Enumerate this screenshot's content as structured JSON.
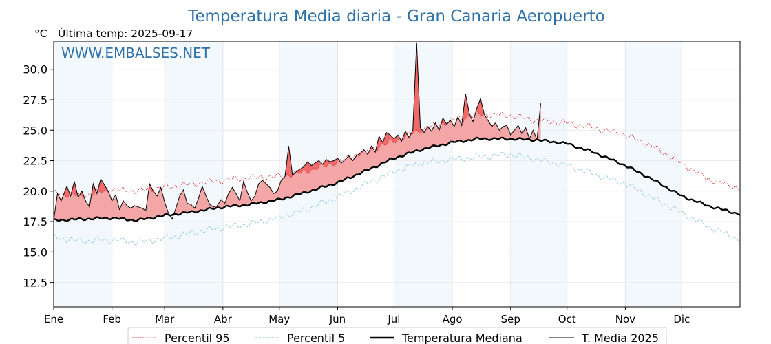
{
  "chart_data": {
    "type": "line",
    "title": "Temperatura Media diaria - Gran Canaria Aeropuerto",
    "unit_label": "°C",
    "last_temp_label": "Última temp: 2025-09-17",
    "watermark": "WWW.EMBALSES.NET",
    "ylim": [
      10.5,
      32.3
    ],
    "yticks": [
      12.5,
      15.0,
      17.5,
      20.0,
      22.5,
      25.0,
      27.5,
      30.0
    ],
    "xlim_days": [
      1,
      366
    ],
    "months": [
      "Ene",
      "Feb",
      "Mar",
      "Abr",
      "May",
      "Jun",
      "Jul",
      "Ago",
      "Sep",
      "Oct",
      "Nov",
      "Dic"
    ],
    "grid": true,
    "legend_position": "bottom",
    "fill_colors": {
      "above_median": "#f4a6a6",
      "above_p95": "#f06a6a"
    },
    "series": [
      {
        "name": "Percentil 95",
        "style": "dotted",
        "color": "#e03030",
        "anchors": [
          [
            1,
            19.9
          ],
          [
            15,
            19.6
          ],
          [
            32,
            20.1
          ],
          [
            45,
            20.0
          ],
          [
            60,
            20.3
          ],
          [
            75,
            20.6
          ],
          [
            91,
            20.9
          ],
          [
            105,
            21.1
          ],
          [
            121,
            21.2
          ],
          [
            135,
            21.6
          ],
          [
            152,
            22.4
          ],
          [
            166,
            23.2
          ],
          [
            182,
            24.1
          ],
          [
            196,
            25.0
          ],
          [
            213,
            25.8
          ],
          [
            227,
            26.3
          ],
          [
            244,
            26.2
          ],
          [
            258,
            25.8
          ],
          [
            274,
            25.6
          ],
          [
            288,
            25.2
          ],
          [
            305,
            24.6
          ],
          [
            319,
            23.7
          ],
          [
            335,
            22.3
          ],
          [
            349,
            21.0
          ],
          [
            366,
            20.2
          ]
        ]
      },
      {
        "name": "Percentil 5",
        "style": "dashed",
        "color": "#9fd0e0",
        "anchors": [
          [
            1,
            16.2
          ],
          [
            15,
            15.9
          ],
          [
            32,
            16.0
          ],
          [
            45,
            15.8
          ],
          [
            60,
            16.1
          ],
          [
            75,
            16.6
          ],
          [
            91,
            17.0
          ],
          [
            105,
            17.3
          ],
          [
            121,
            17.8
          ],
          [
            135,
            18.5
          ],
          [
            152,
            19.5
          ],
          [
            166,
            20.5
          ],
          [
            182,
            21.6
          ],
          [
            196,
            22.3
          ],
          [
            213,
            22.6
          ],
          [
            227,
            22.8
          ],
          [
            244,
            23.0
          ],
          [
            258,
            22.6
          ],
          [
            274,
            22.1
          ],
          [
            288,
            21.4
          ],
          [
            305,
            20.6
          ],
          [
            319,
            19.5
          ],
          [
            335,
            18.2
          ],
          [
            349,
            17.1
          ],
          [
            366,
            16.0
          ]
        ]
      },
      {
        "name": "Temperatura Mediana",
        "style": "thick",
        "color": "#000000",
        "anchors": [
          [
            1,
            17.6
          ],
          [
            15,
            17.7
          ],
          [
            32,
            17.8
          ],
          [
            45,
            17.6
          ],
          [
            60,
            18.0
          ],
          [
            75,
            18.3
          ],
          [
            91,
            18.7
          ],
          [
            105,
            18.9
          ],
          [
            121,
            19.3
          ],
          [
            135,
            19.9
          ],
          [
            152,
            20.7
          ],
          [
            166,
            21.6
          ],
          [
            182,
            22.7
          ],
          [
            196,
            23.4
          ],
          [
            213,
            24.0
          ],
          [
            227,
            24.3
          ],
          [
            244,
            24.3
          ],
          [
            258,
            24.2
          ],
          [
            274,
            23.9
          ],
          [
            288,
            23.2
          ],
          [
            305,
            22.1
          ],
          [
            319,
            21.0
          ],
          [
            335,
            19.6
          ],
          [
            349,
            18.8
          ],
          [
            366,
            18.1
          ]
        ]
      },
      {
        "name": "T. Media 2025",
        "style": "thin",
        "color": "#000000",
        "values": [
          [
            1,
            17.6
          ],
          [
            3,
            19.8
          ],
          [
            5,
            19.2
          ],
          [
            8,
            20.4
          ],
          [
            10,
            19.6
          ],
          [
            12,
            20.8
          ],
          [
            14,
            19.5
          ],
          [
            16,
            20.0
          ],
          [
            18,
            19.2
          ],
          [
            20,
            18.7
          ],
          [
            22,
            20.6
          ],
          [
            24,
            19.8
          ],
          [
            26,
            21.0
          ],
          [
            28,
            20.5
          ],
          [
            30,
            20.0
          ],
          [
            32,
            19.2
          ],
          [
            34,
            19.7
          ],
          [
            36,
            18.5
          ],
          [
            38,
            19.2
          ],
          [
            40,
            18.8
          ],
          [
            42,
            18.6
          ],
          [
            44,
            18.8
          ],
          [
            46,
            18.7
          ],
          [
            48,
            18.6
          ],
          [
            50,
            18.4
          ],
          [
            52,
            20.6
          ],
          [
            54,
            20.0
          ],
          [
            56,
            19.6
          ],
          [
            58,
            20.3
          ],
          [
            60,
            19.1
          ],
          [
            62,
            18.2
          ],
          [
            64,
            17.7
          ],
          [
            66,
            18.6
          ],
          [
            68,
            19.6
          ],
          [
            70,
            20.1
          ],
          [
            72,
            19.0
          ],
          [
            74,
            18.9
          ],
          [
            76,
            18.6
          ],
          [
            78,
            19.4
          ],
          [
            80,
            20.4
          ],
          [
            82,
            19.6
          ],
          [
            84,
            18.9
          ],
          [
            86,
            18.7
          ],
          [
            88,
            18.8
          ],
          [
            90,
            19.3
          ],
          [
            92,
            19.0
          ],
          [
            94,
            19.8
          ],
          [
            96,
            20.3
          ],
          [
            98,
            19.8
          ],
          [
            100,
            19.2
          ],
          [
            102,
            20.8
          ],
          [
            104,
            19.9
          ],
          [
            106,
            19.2
          ],
          [
            108,
            19.6
          ],
          [
            110,
            20.6
          ],
          [
            112,
            20.9
          ],
          [
            114,
            20.6
          ],
          [
            116,
            20.3
          ],
          [
            118,
            19.8
          ],
          [
            120,
            20.0
          ],
          [
            122,
            20.9
          ],
          [
            124,
            21.2
          ],
          [
            126,
            23.7
          ],
          [
            128,
            21.3
          ],
          [
            130,
            21.6
          ],
          [
            132,
            21.8
          ],
          [
            134,
            22.0
          ],
          [
            136,
            22.4
          ],
          [
            138,
            22.1
          ],
          [
            140,
            22.3
          ],
          [
            142,
            22.5
          ],
          [
            144,
            22.2
          ],
          [
            146,
            22.6
          ],
          [
            148,
            22.4
          ],
          [
            150,
            22.5
          ],
          [
            152,
            22.7
          ],
          [
            154,
            22.3
          ],
          [
            156,
            22.6
          ],
          [
            158,
            22.9
          ],
          [
            160,
            22.5
          ],
          [
            162,
            22.9
          ],
          [
            164,
            23.1
          ],
          [
            166,
            23.4
          ],
          [
            168,
            23.0
          ],
          [
            170,
            23.7
          ],
          [
            172,
            23.2
          ],
          [
            174,
            24.5
          ],
          [
            176,
            24.0
          ],
          [
            178,
            24.8
          ],
          [
            180,
            24.6
          ],
          [
            182,
            24.3
          ],
          [
            184,
            24.6
          ],
          [
            186,
            24.1
          ],
          [
            188,
            24.9
          ],
          [
            190,
            24.4
          ],
          [
            192,
            25.0
          ],
          [
            194,
            32.2
          ],
          [
            196,
            25.2
          ],
          [
            198,
            24.8
          ],
          [
            200,
            25.3
          ],
          [
            202,
            24.9
          ],
          [
            204,
            25.6
          ],
          [
            206,
            25.0
          ],
          [
            208,
            26.0
          ],
          [
            210,
            25.5
          ],
          [
            212,
            25.8
          ],
          [
            214,
            25.3
          ],
          [
            216,
            26.1
          ],
          [
            218,
            25.4
          ],
          [
            220,
            28.0
          ],
          [
            222,
            26.4
          ],
          [
            224,
            25.7
          ],
          [
            226,
            26.8
          ],
          [
            228,
            27.6
          ],
          [
            230,
            26.3
          ],
          [
            232,
            25.8
          ],
          [
            234,
            25.3
          ],
          [
            236,
            25.6
          ],
          [
            238,
            25.0
          ],
          [
            240,
            25.3
          ],
          [
            242,
            25.4
          ],
          [
            244,
            24.6
          ],
          [
            246,
            25.0
          ],
          [
            248,
            25.4
          ],
          [
            250,
            24.7
          ],
          [
            252,
            25.2
          ],
          [
            254,
            24.3
          ],
          [
            256,
            25.0
          ],
          [
            258,
            24.2
          ],
          [
            260,
            27.2
          ]
        ]
      }
    ]
  }
}
